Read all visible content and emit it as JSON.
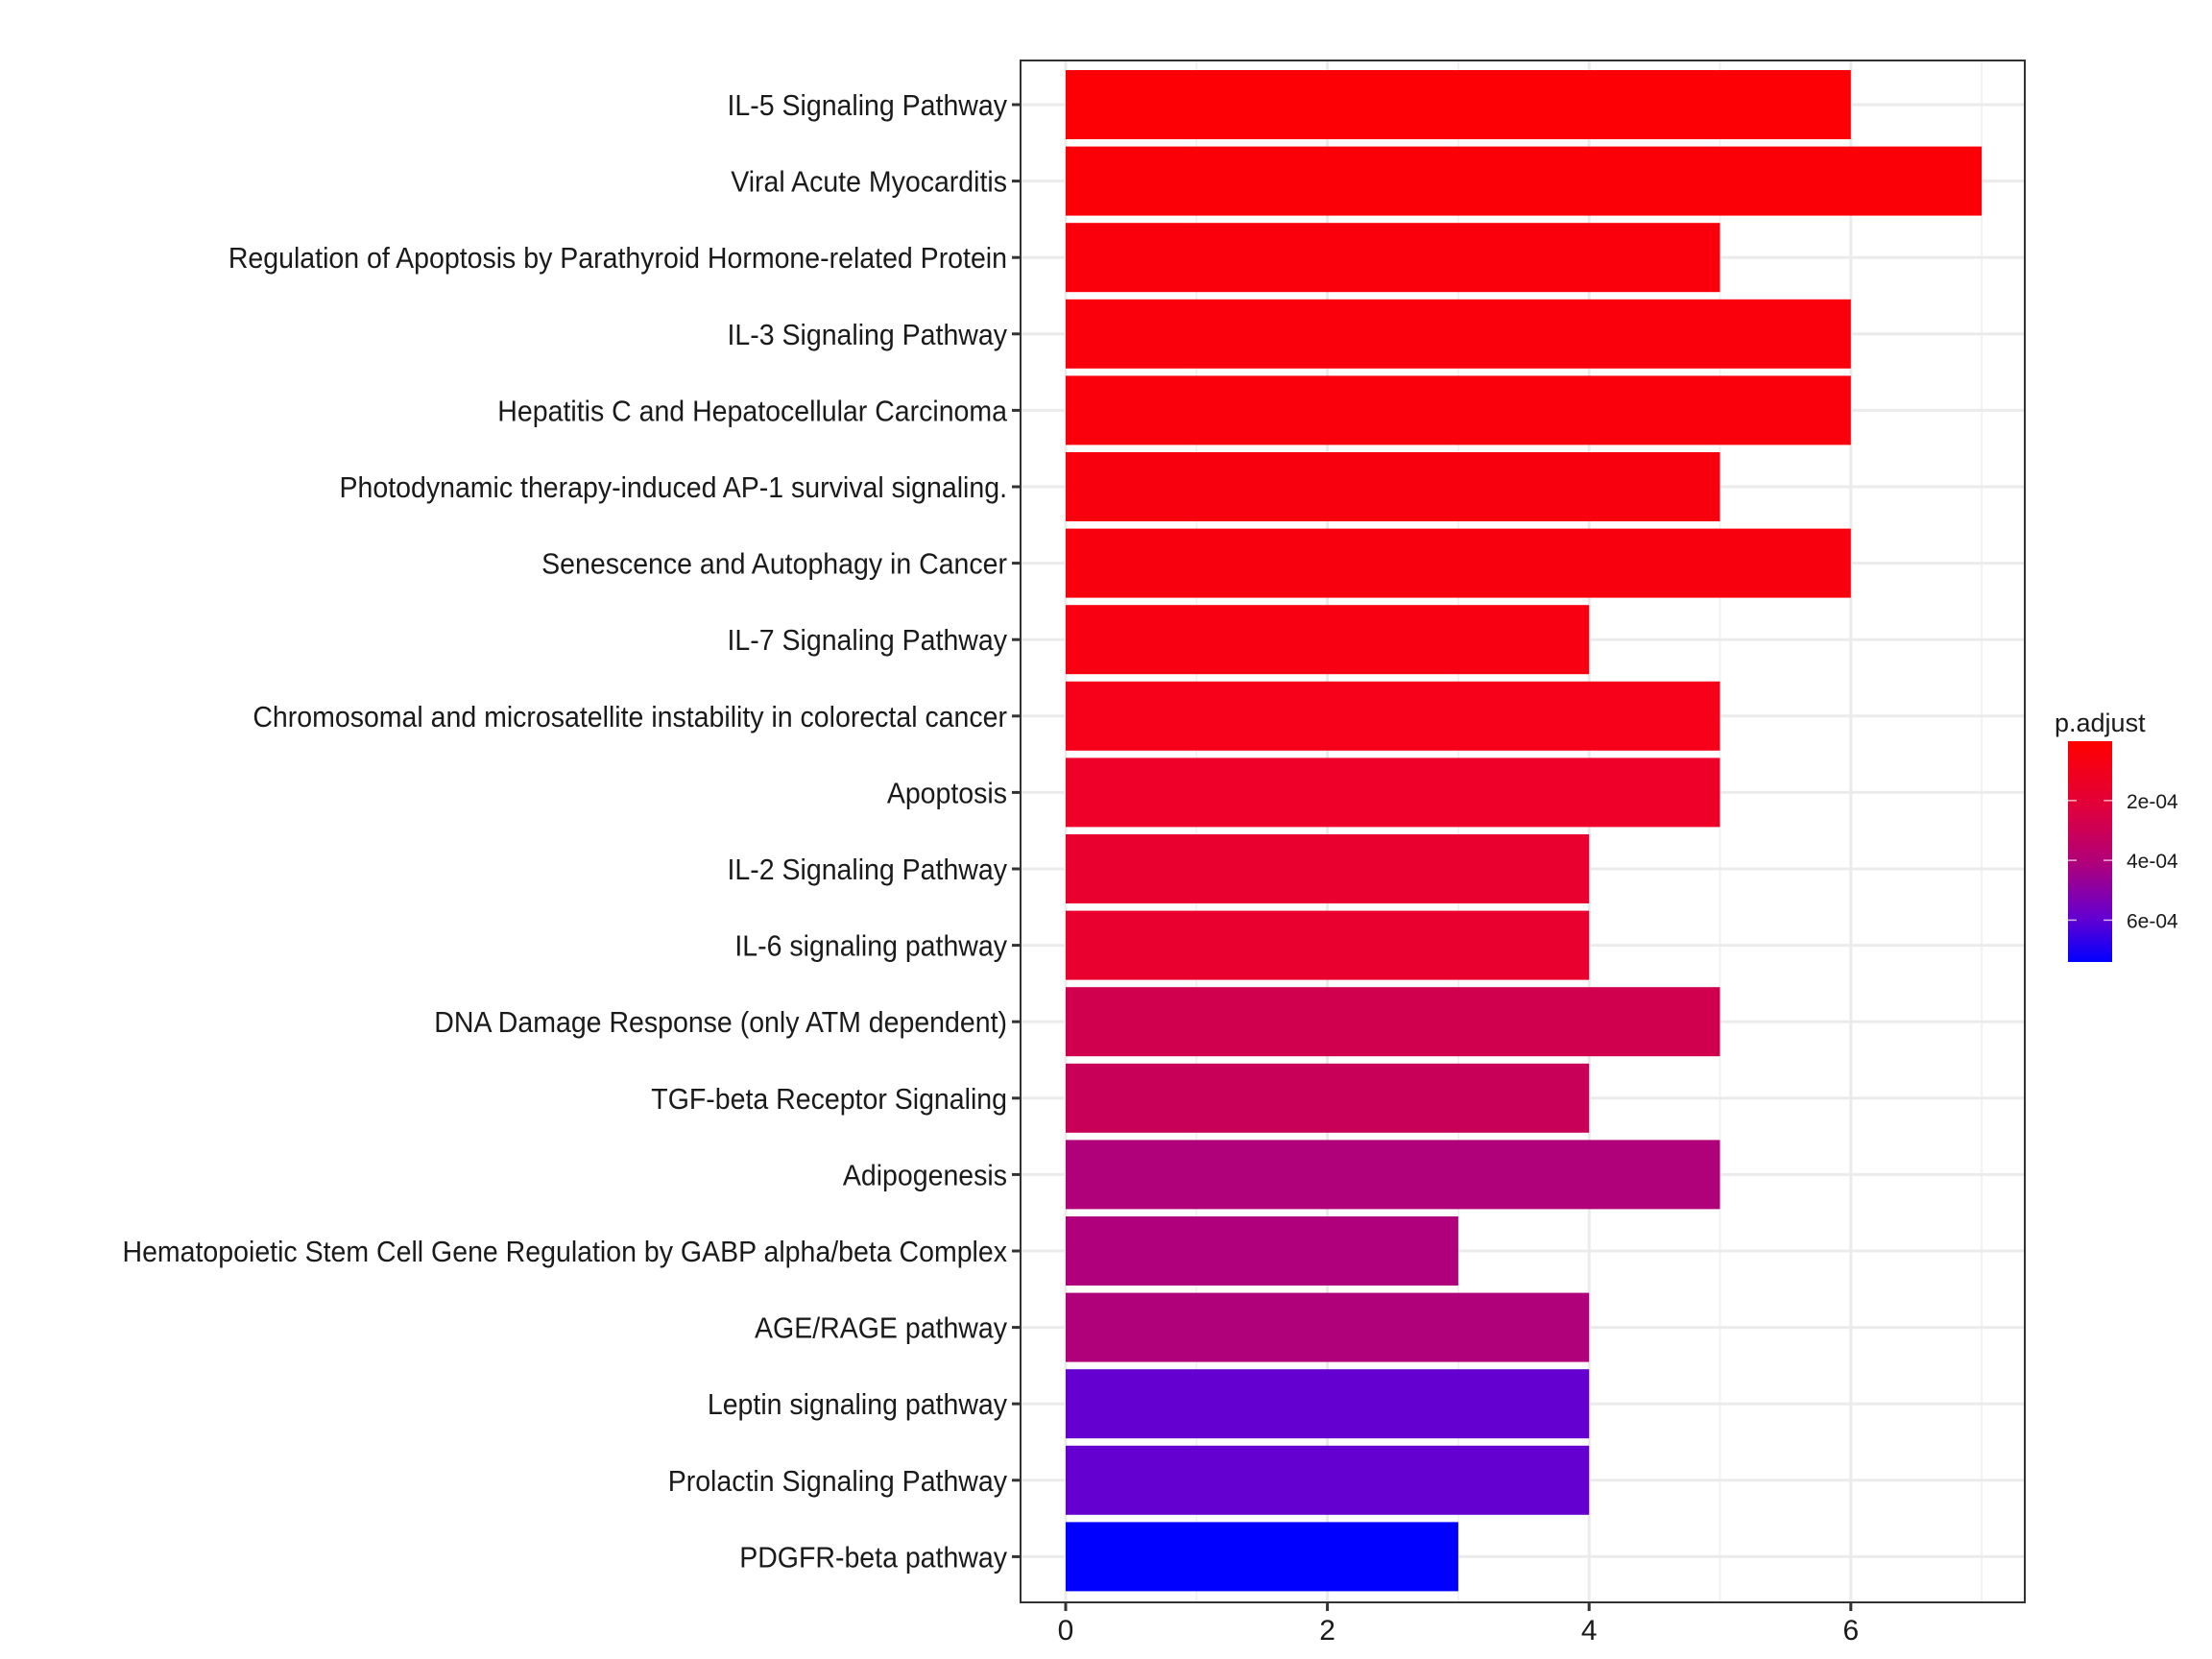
{
  "chart_data": {
    "type": "bar",
    "orientation": "horizontal",
    "title": "",
    "xlabel": "",
    "ylabel": "",
    "xlim": [
      0,
      7.35
    ],
    "x_ticks": [
      0,
      2,
      4,
      6
    ],
    "x_tick_labels": [
      "0",
      "2",
      "4",
      "6"
    ],
    "grid": true,
    "categories": [
      "IL-5 Signaling Pathway",
      "Viral Acute Myocarditis",
      "Regulation of Apoptosis by Parathyroid Hormone-related Protein",
      "IL-3 Signaling Pathway",
      "Hepatitis C and Hepatocellular Carcinoma",
      "Photodynamic therapy-induced AP-1 survival signaling.",
      "Senescence and Autophagy in Cancer",
      "IL-7 Signaling Pathway",
      "Chromosomal and microsatellite instability in colorectal cancer ",
      "Apoptosis",
      "IL-2 Signaling Pathway",
      "IL-6 signaling pathway",
      "DNA Damage Response (only ATM dependent)",
      "TGF-beta Receptor Signaling",
      "Adipogenesis",
      "Hematopoietic Stem Cell Gene Regulation by GABP alpha/beta Complex",
      "AGE/RAGE pathway",
      "Leptin signaling pathway",
      "Prolactin Signaling Pathway",
      "PDGFR-beta pathway"
    ],
    "values": [
      6,
      7,
      5,
      6,
      6,
      5,
      6,
      4,
      5,
      5,
      4,
      4,
      5,
      4,
      5,
      3,
      4,
      4,
      4,
      3
    ],
    "p_adjust": [
      5e-06,
      8e-06,
      2e-05,
      2e-05,
      2e-05,
      3e-05,
      3e-05,
      4e-05,
      6e-05,
      9e-05,
      0.0001,
      0.0001,
      0.00019,
      0.00021,
      0.0003,
      0.0003,
      0.0003,
      0.00055,
      0.00055,
      0.00074
    ],
    "bar_colors": [
      "#FC0006",
      "#FC0008",
      "#FA000C",
      "#FA000C",
      "#FA000C",
      "#F9000E",
      "#F9000F",
      "#F80012",
      "#F6001A",
      "#EE0028",
      "#EA002E",
      "#EA002E",
      "#D0004F",
      "#C90058",
      "#B0007A",
      "#B0007B",
      "#B0007A",
      "#6400D0",
      "#6400D0",
      "#0000FF"
    ],
    "legend": {
      "title": "p.adjust",
      "type": "colorbar",
      "placement": "right",
      "low_color": "#FF0000",
      "high_color": "#0000FF",
      "range": [
        1.5e-06,
        0.00074
      ],
      "ticks": [
        0.0002,
        0.0004,
        0.0006
      ],
      "tick_labels": [
        "2e-04",
        "4e-04",
        "6e-04"
      ]
    }
  }
}
